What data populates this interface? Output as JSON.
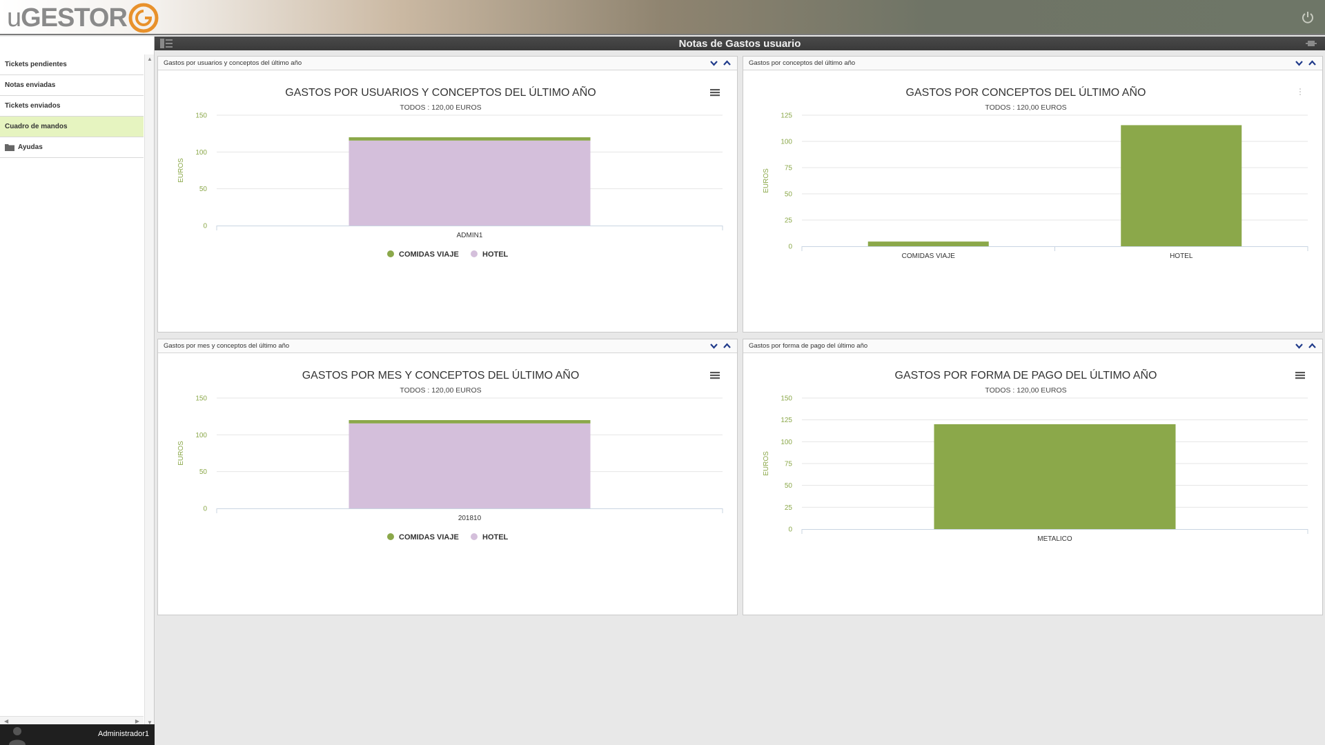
{
  "app": {
    "logo_text_prefix": "u",
    "logo_text_main": "GESTOR",
    "page_title": "Notas de Gastos usuario",
    "user_name": "Administrador1"
  },
  "sidebar": {
    "items": [
      {
        "label": "Tickets pendientes"
      },
      {
        "label": "Notas enviadas"
      },
      {
        "label": "Tickets enviados"
      },
      {
        "label": "Cuadro de mandos",
        "active": true
      },
      {
        "label": "Ayudas",
        "icon": "folder-icon"
      }
    ]
  },
  "colors": {
    "hotel": "#d4bfdb",
    "comidas": "#8ba84a",
    "single": "#8ba84a",
    "axis_text": "#8ba84a",
    "title": "#333333"
  },
  "panels": [
    {
      "header": "Gastos por usuarios y conceptos del último año"
    },
    {
      "header": "Gastos por conceptos del último año"
    },
    {
      "header": "Gastos por mes y conceptos del último año"
    },
    {
      "header": "Gastos por forma de pago del último año"
    }
  ],
  "chart_data": [
    {
      "type": "bar",
      "stacked": true,
      "title": "GASTOS POR USUARIOS Y CONCEPTOS DEL ÚLTIMO AÑO",
      "subtitle": "TODOS : 120,00 EUROS",
      "ylabel": "EUROS",
      "ylim": [
        0,
        150
      ],
      "yticks": [
        0,
        50,
        100,
        150
      ],
      "categories": [
        "ADMIN1"
      ],
      "series": [
        {
          "name": "COMIDAS VIAJE",
          "values": [
            4.5
          ]
        },
        {
          "name": "HOTEL",
          "values": [
            115.5
          ]
        }
      ],
      "legend": "bottom",
      "menu_icon": "hamburger-icon"
    },
    {
      "type": "bar",
      "stacked": false,
      "title": "GASTOS POR CONCEPTOS DEL ÚLTIMO AÑO",
      "subtitle": "TODOS : 120,00 EUROS",
      "ylabel": "EUROS",
      "ylim": [
        0,
        125
      ],
      "yticks": [
        0,
        25,
        50,
        75,
        100,
        125
      ],
      "categories": [
        "COMIDAS VIAJE",
        "HOTEL"
      ],
      "values": [
        4.5,
        115.5
      ],
      "legend": "none",
      "menu_icon": "dots-icon"
    },
    {
      "type": "bar",
      "stacked": true,
      "title": "GASTOS POR MES Y CONCEPTOS DEL ÚLTIMO AÑO",
      "subtitle": "TODOS : 120,00 EUROS",
      "ylabel": "EUROS",
      "ylim": [
        0,
        150
      ],
      "yticks": [
        0,
        50,
        100,
        150
      ],
      "categories": [
        "201810"
      ],
      "series": [
        {
          "name": "COMIDAS VIAJE",
          "values": [
            4.5
          ]
        },
        {
          "name": "HOTEL",
          "values": [
            115.5
          ]
        }
      ],
      "legend": "bottom",
      "menu_icon": "hamburger-icon"
    },
    {
      "type": "bar",
      "stacked": false,
      "title": "GASTOS POR FORMA DE PAGO DEL ÚLTIMO AÑO",
      "subtitle": "TODOS : 120,00 EUROS",
      "ylabel": "EUROS",
      "ylim": [
        0,
        150
      ],
      "yticks": [
        0,
        25,
        50,
        75,
        100,
        125,
        150
      ],
      "categories": [
        "METALICO"
      ],
      "values": [
        120
      ],
      "legend": "none",
      "menu_icon": "hamburger-icon"
    }
  ]
}
